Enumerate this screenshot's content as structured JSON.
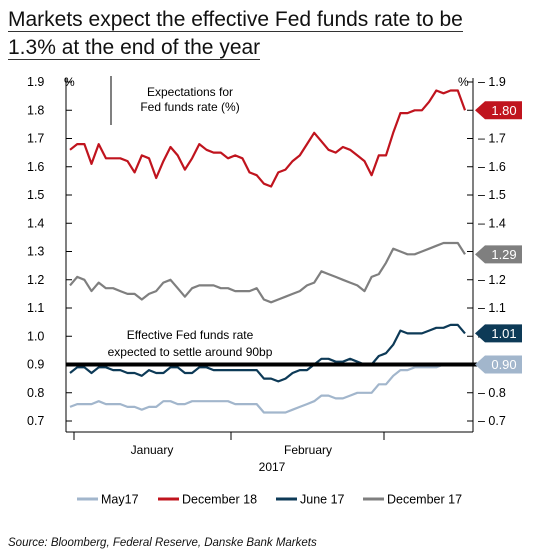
{
  "title": {
    "line1": "Markets expect the effective Fed funds rate to be",
    "line2": "1.3% at the end of the year"
  },
  "source": "Source: Bloomberg, Federal Reserve, Danske Bank Markets",
  "chart_data": {
    "type": "line",
    "y_unit_left": "%",
    "y_unit_right": "%",
    "ylim": [
      0.7,
      1.9
    ],
    "yticks": [
      "0.7",
      "0.8",
      "0.9",
      "1.0",
      "1.1",
      "1.2",
      "1.3",
      "1.4",
      "1.5",
      "1.6",
      "1.7",
      "1.8",
      "1.9"
    ],
    "x_tick_labels": [
      "January",
      "February"
    ],
    "x_year_label": "2017",
    "annotations": {
      "box_line1": "Expectations for",
      "box_line2": "Fed funds rate (%)",
      "ffr_line1": "Effective Fed funds rate",
      "ffr_line2": "expected to settle around 90bp"
    },
    "reference_line": {
      "value": 0.9
    },
    "end_labels": [
      {
        "label": "1.80",
        "value": 1.8,
        "color": "#c0141e"
      },
      {
        "label": "1.29",
        "value": 1.29,
        "color": "#7f7f7f"
      },
      {
        "label": "1.01",
        "value": 1.01,
        "color": "#0d3a57"
      },
      {
        "label": "0.90",
        "value": 0.9,
        "color": "#a2b6cc"
      }
    ],
    "legend": [
      "May17",
      "December 18",
      "June 17",
      "December 17"
    ],
    "colors": {
      "May17": "#a2b6cc",
      "December 18": "#c0141e",
      "June 17": "#0d3a57",
      "December 17": "#7f7f7f"
    },
    "series": [
      {
        "name": "December 18",
        "color": "#c0141e",
        "values": [
          1.66,
          1.68,
          1.68,
          1.61,
          1.68,
          1.63,
          1.63,
          1.63,
          1.62,
          1.58,
          1.64,
          1.63,
          1.56,
          1.62,
          1.67,
          1.64,
          1.59,
          1.63,
          1.68,
          1.66,
          1.65,
          1.65,
          1.63,
          1.64,
          1.63,
          1.58,
          1.57,
          1.54,
          1.53,
          1.58,
          1.59,
          1.62,
          1.64,
          1.68,
          1.72,
          1.69,
          1.66,
          1.65,
          1.67,
          1.66,
          1.64,
          1.62,
          1.57,
          1.64,
          1.64,
          1.72,
          1.79,
          1.79,
          1.8,
          1.8,
          1.83,
          1.87,
          1.86,
          1.87,
          1.87,
          1.8
        ]
      },
      {
        "name": "December 17",
        "color": "#7f7f7f",
        "values": [
          1.18,
          1.21,
          1.2,
          1.16,
          1.19,
          1.17,
          1.17,
          1.16,
          1.15,
          1.15,
          1.13,
          1.15,
          1.16,
          1.19,
          1.2,
          1.17,
          1.14,
          1.17,
          1.18,
          1.18,
          1.18,
          1.17,
          1.17,
          1.16,
          1.16,
          1.16,
          1.17,
          1.13,
          1.12,
          1.13,
          1.14,
          1.15,
          1.16,
          1.18,
          1.19,
          1.23,
          1.22,
          1.21,
          1.2,
          1.19,
          1.18,
          1.16,
          1.21,
          1.22,
          1.26,
          1.31,
          1.3,
          1.29,
          1.29,
          1.3,
          1.31,
          1.32,
          1.33,
          1.33,
          1.33,
          1.29
        ]
      },
      {
        "name": "June 17",
        "color": "#0d3a57",
        "values": [
          0.87,
          0.89,
          0.89,
          0.87,
          0.89,
          0.89,
          0.88,
          0.88,
          0.87,
          0.87,
          0.86,
          0.88,
          0.87,
          0.87,
          0.89,
          0.89,
          0.87,
          0.87,
          0.89,
          0.89,
          0.88,
          0.88,
          0.88,
          0.88,
          0.88,
          0.88,
          0.88,
          0.85,
          0.85,
          0.84,
          0.85,
          0.87,
          0.88,
          0.88,
          0.9,
          0.92,
          0.92,
          0.91,
          0.91,
          0.92,
          0.91,
          0.9,
          0.9,
          0.93,
          0.94,
          0.97,
          1.02,
          1.01,
          1.01,
          1.01,
          1.02,
          1.03,
          1.03,
          1.04,
          1.04,
          1.01
        ]
      },
      {
        "name": "May17",
        "color": "#a2b6cc",
        "values": [
          0.75,
          0.76,
          0.76,
          0.76,
          0.77,
          0.76,
          0.76,
          0.76,
          0.75,
          0.75,
          0.74,
          0.75,
          0.75,
          0.77,
          0.77,
          0.76,
          0.76,
          0.77,
          0.77,
          0.77,
          0.77,
          0.77,
          0.77,
          0.76,
          0.76,
          0.76,
          0.76,
          0.73,
          0.73,
          0.73,
          0.73,
          0.74,
          0.75,
          0.76,
          0.77,
          0.79,
          0.79,
          0.78,
          0.78,
          0.79,
          0.8,
          0.8,
          0.8,
          0.83,
          0.83,
          0.86,
          0.88,
          0.88,
          0.89,
          0.89,
          0.89,
          0.89,
          0.9,
          0.9,
          0.9,
          0.9
        ]
      }
    ]
  }
}
